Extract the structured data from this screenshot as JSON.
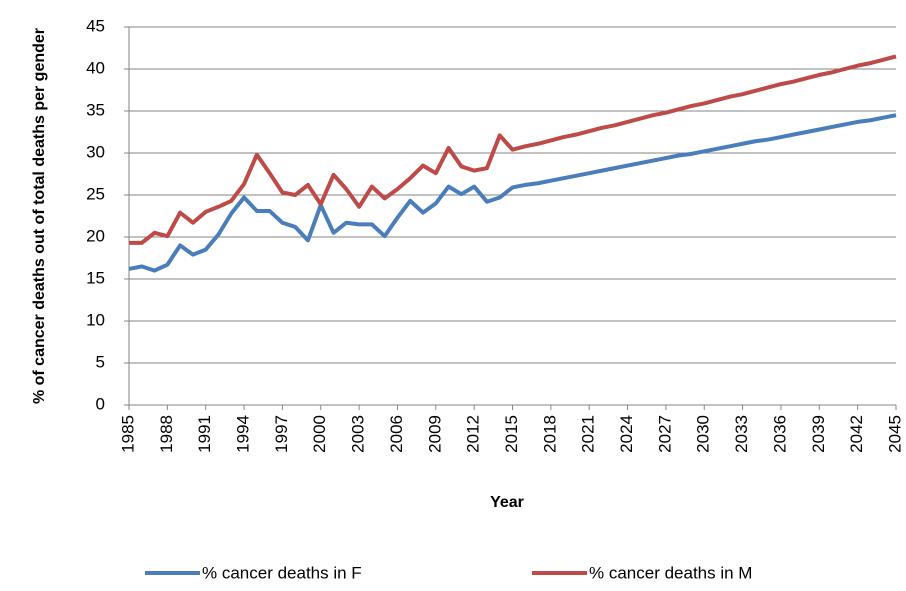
{
  "chart_data": {
    "type": "line",
    "xlabel": "Year",
    "ylabel": "% of cancer deaths out of total deaths per gender",
    "x": [
      1985,
      1986,
      1987,
      1988,
      1989,
      1990,
      1991,
      1992,
      1993,
      1994,
      1995,
      1996,
      1997,
      1998,
      1999,
      2000,
      2001,
      2002,
      2003,
      2004,
      2005,
      2006,
      2007,
      2008,
      2009,
      2010,
      2011,
      2012,
      2013,
      2014,
      2015,
      2016,
      2017,
      2018,
      2019,
      2020,
      2021,
      2022,
      2023,
      2024,
      2025,
      2026,
      2027,
      2028,
      2029,
      2030,
      2031,
      2032,
      2033,
      2034,
      2035,
      2036,
      2037,
      2038,
      2039,
      2040,
      2041,
      2042,
      2043,
      2044,
      2045
    ],
    "series": [
      {
        "name": "% cancer deaths in F",
        "color": "#4a7ebb",
        "values": [
          16.2,
          16.5,
          16.0,
          16.7,
          19.0,
          17.9,
          18.5,
          20.3,
          22.8,
          24.7,
          23.1,
          23.1,
          21.7,
          21.2,
          19.6,
          23.8,
          20.5,
          21.7,
          21.5,
          21.5,
          20.1,
          22.3,
          24.3,
          22.9,
          24.0,
          26.0,
          25.1,
          26.0,
          24.2,
          24.7,
          25.9,
          26.2,
          26.4,
          26.7,
          27.0,
          27.3,
          27.6,
          27.9,
          28.2,
          28.5,
          28.8,
          29.1,
          29.4,
          29.7,
          29.9,
          30.2,
          30.5,
          30.8,
          31.1,
          31.4,
          31.6,
          31.9,
          32.2,
          32.5,
          32.8,
          33.1,
          33.4,
          33.7,
          33.9,
          34.2,
          34.5
        ]
      },
      {
        "name": "% cancer deaths in M",
        "color": "#be4b48",
        "values": [
          19.3,
          19.3,
          20.5,
          20.1,
          22.9,
          21.7,
          23.0,
          23.6,
          24.3,
          26.3,
          29.8,
          27.6,
          25.3,
          25.0,
          26.2,
          23.9,
          27.4,
          25.7,
          23.6,
          26.0,
          24.6,
          25.7,
          27.0,
          28.5,
          27.6,
          30.6,
          28.4,
          27.9,
          28.2,
          32.1,
          30.4,
          30.8,
          31.1,
          31.5,
          31.9,
          32.2,
          32.6,
          33.0,
          33.3,
          33.7,
          34.1,
          34.5,
          34.8,
          35.2,
          35.6,
          35.9,
          36.3,
          36.7,
          37.0,
          37.4,
          37.8,
          38.2,
          38.5,
          38.9,
          39.3,
          39.6,
          40.0,
          40.4,
          40.7,
          41.1,
          41.5
        ]
      }
    ],
    "xlim": [
      1985,
      2045
    ],
    "xticks": [
      1985,
      1988,
      1991,
      1994,
      1997,
      2000,
      2003,
      2006,
      2009,
      2012,
      2015,
      2018,
      2021,
      2024,
      2027,
      2030,
      2033,
      2036,
      2039,
      2042,
      2045
    ],
    "ylim": [
      0,
      45
    ],
    "yticks": [
      0,
      5,
      10,
      15,
      20,
      25,
      30,
      35,
      40,
      45
    ],
    "grid": true,
    "legend": "bottom"
  }
}
